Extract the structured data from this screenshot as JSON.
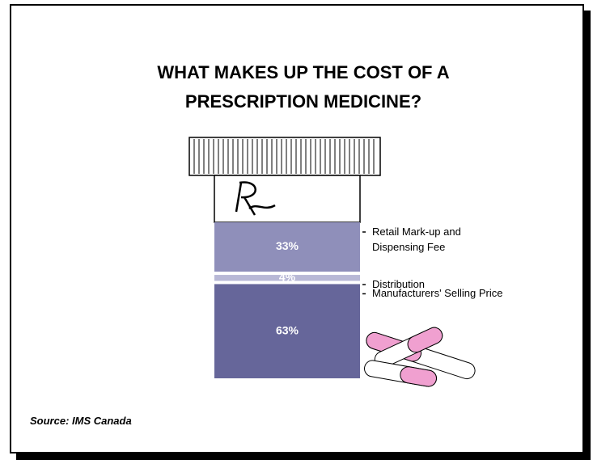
{
  "chart_data": {
    "type": "stacked-bar",
    "title": "WHAT MAKES UP THE COST OF A PRESCRIPTION MEDICINE?",
    "series": [
      {
        "name": "Retail Mark-up and Dispensing Fee",
        "color": "#8f8fba",
        "values": [
          33
        ],
        "value_labels": [
          "33%"
        ]
      },
      {
        "name": "Distribution",
        "color": "#b8b8d6",
        "values": [
          4
        ],
        "value_labels": [
          "4%"
        ]
      },
      {
        "name": "Manufacturers' Selling Price",
        "color": "#66669a",
        "values": [
          63
        ],
        "value_labels": [
          "63%"
        ]
      }
    ],
    "source": "Source:  IMS Canada"
  }
}
